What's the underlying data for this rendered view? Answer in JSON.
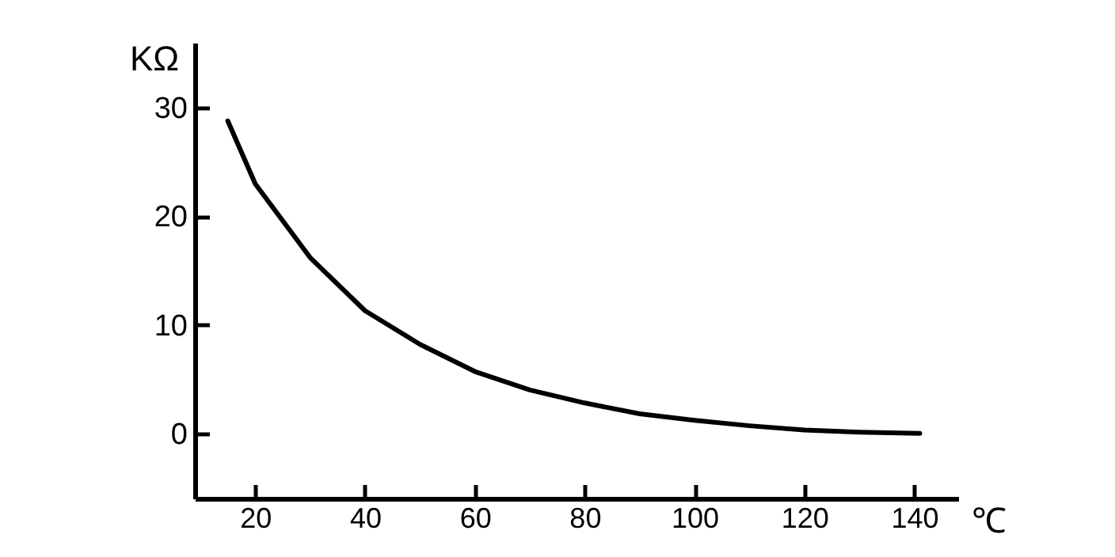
{
  "chart_data": {
    "type": "line",
    "xlabel": "℃",
    "ylabel": "KΩ",
    "x": [
      15,
      20,
      30,
      40,
      50,
      60,
      70,
      80,
      90,
      100,
      110,
      120,
      130,
      141
    ],
    "series": [
      {
        "color": "#000000",
        "values": [
          28.8,
          23.0,
          16.2,
          11.3,
          8.2,
          5.7,
          4.0,
          2.8,
          1.8,
          1.2,
          0.7,
          0.3,
          0.1,
          0.0
        ]
      }
    ],
    "xlim": [
      9,
      148
    ],
    "xticks": [
      20,
      40,
      60,
      80,
      100,
      120,
      140
    ],
    "ylim": [
      -6,
      36
    ],
    "yticks": [
      0,
      10,
      20,
      30
    ],
    "grid": false,
    "legend": false,
    "marker": "none",
    "line_style": "solid"
  }
}
